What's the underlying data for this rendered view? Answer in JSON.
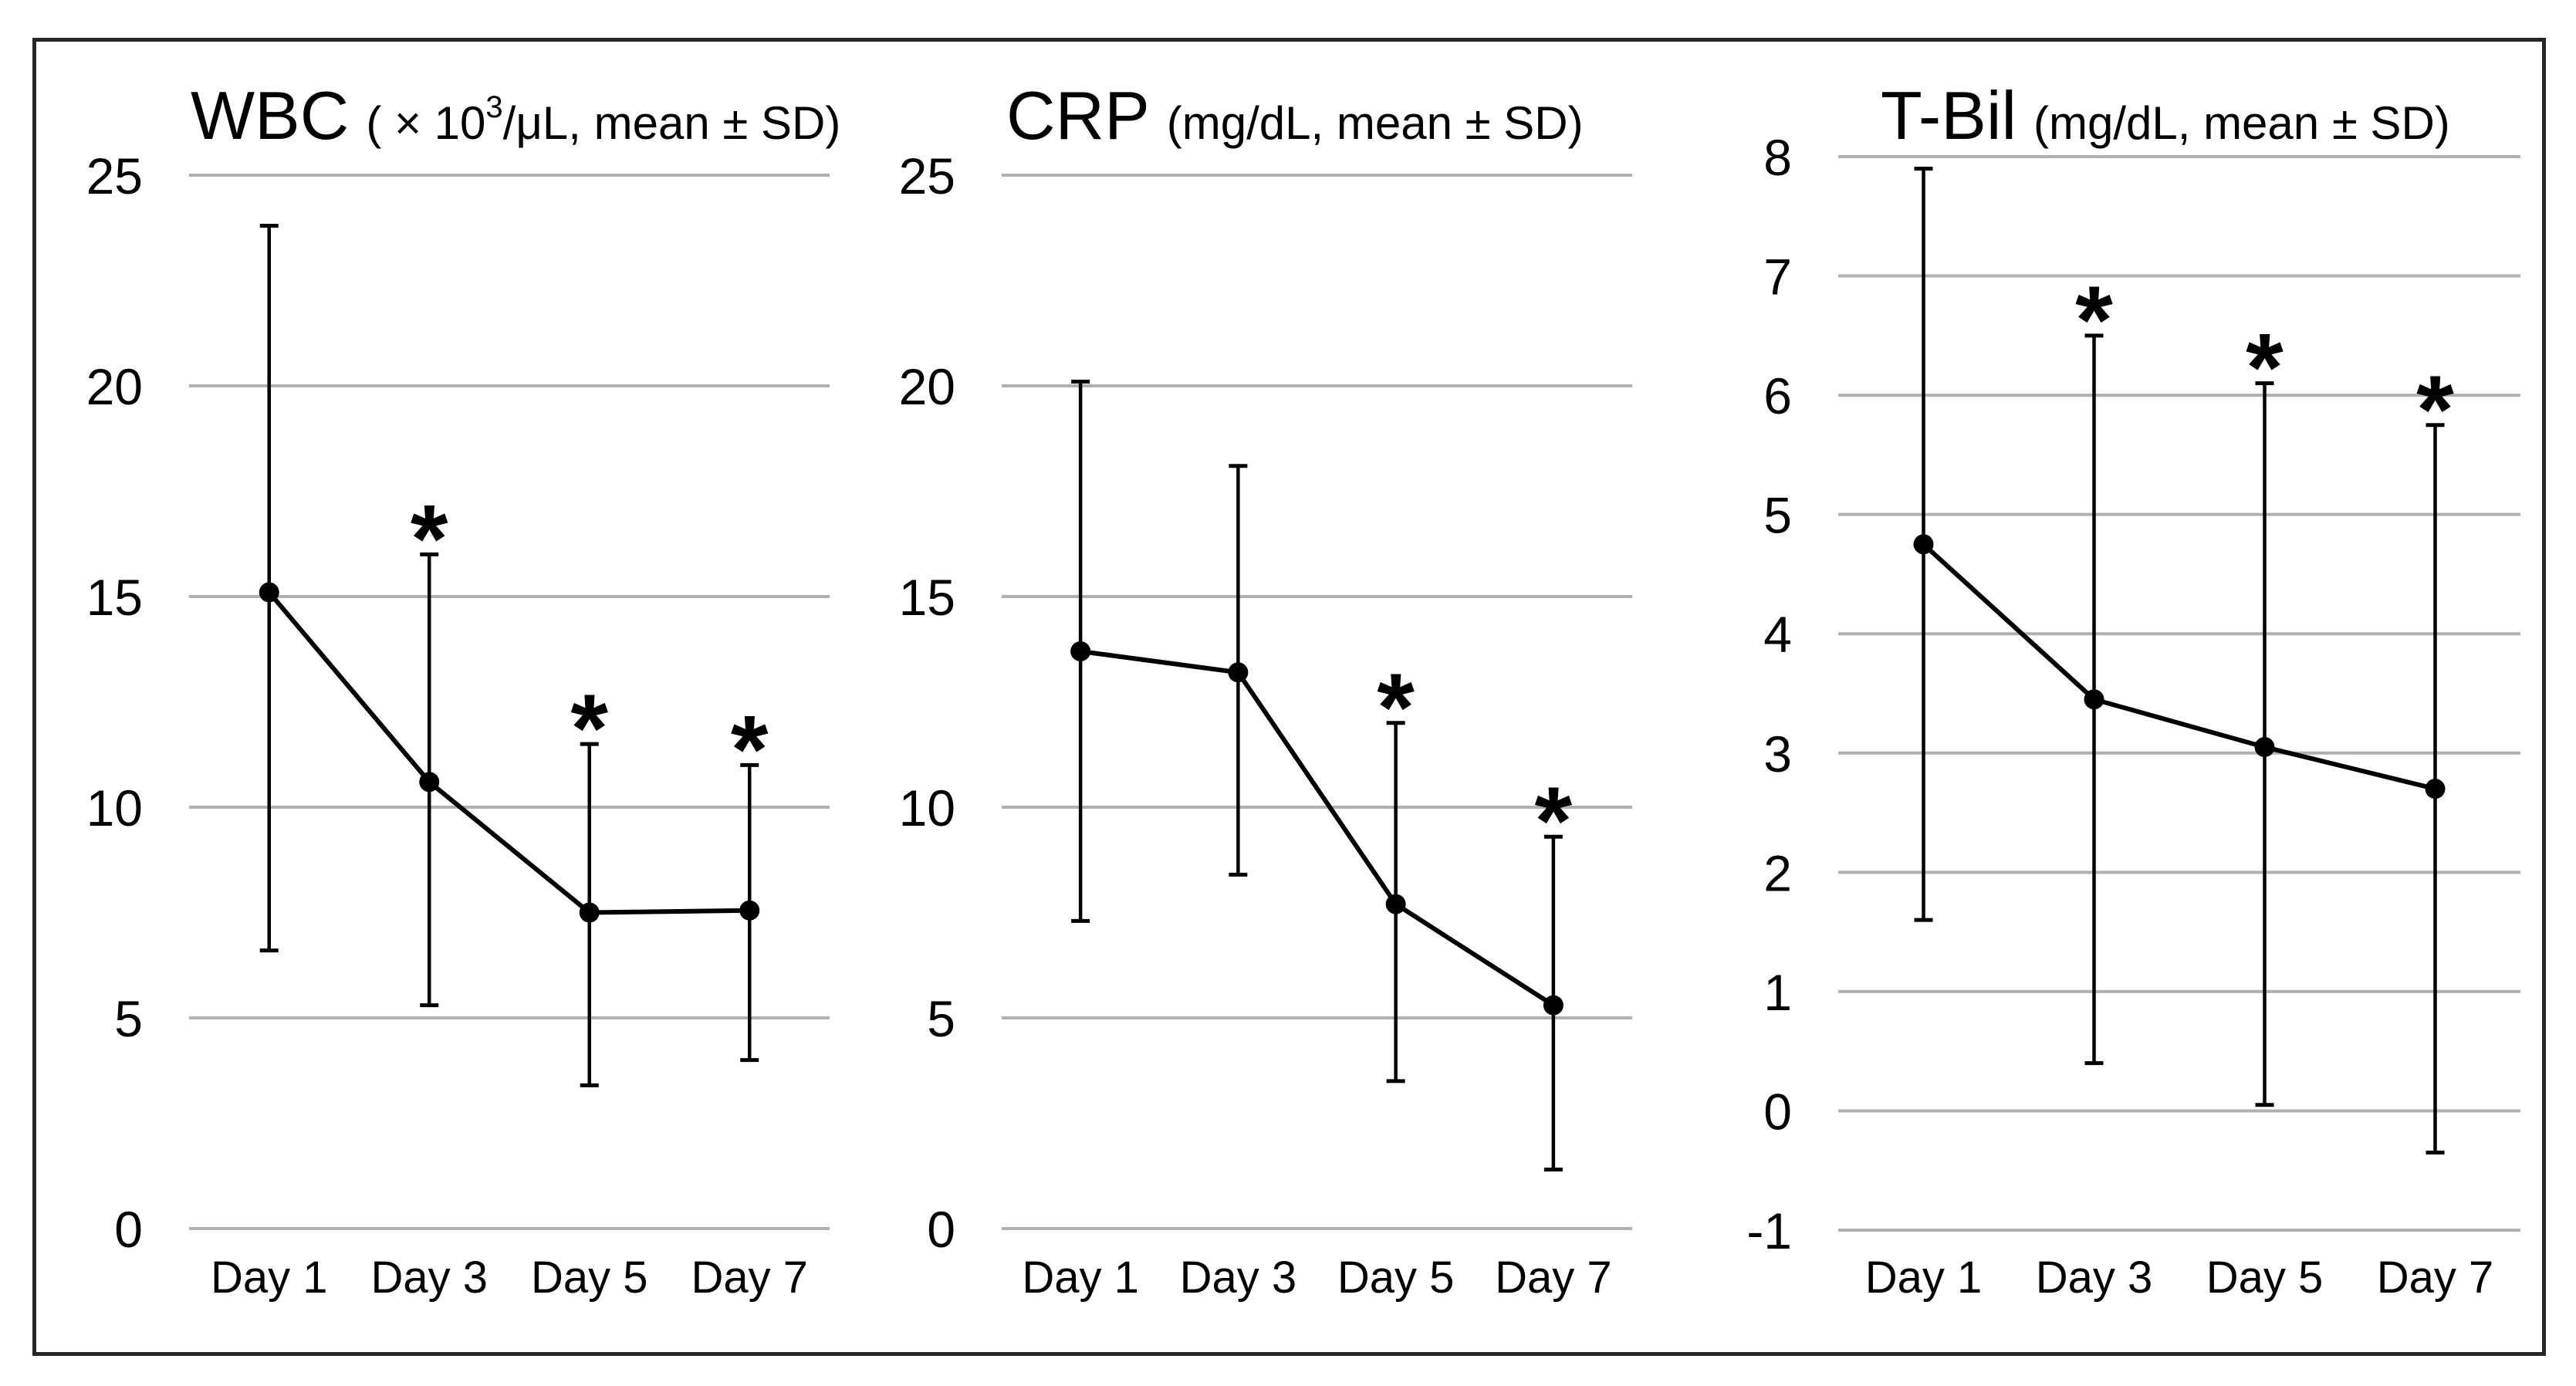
{
  "figure": {
    "background": "#ffffff",
    "border_color": "#262626",
    "gridline_color": "#b0b0b0",
    "series_color": "#000000",
    "text_color": "#000000",
    "significance_marker": "*"
  },
  "categories": [
    "Day 1",
    "Day 3",
    "Day 5",
    "Day 7"
  ],
  "chart_data": [
    {
      "type": "line",
      "title": "WBC",
      "unit_prefix": "( × 10",
      "unit_sup": "3",
      "unit_suffix": "/μL, mean ± SD)",
      "categories": [
        "Day 1",
        "Day 3",
        "Day 5",
        "Day 7"
      ],
      "series": [
        {
          "name": "mean",
          "values": [
            15.1,
            10.6,
            7.5,
            7.55
          ]
        },
        {
          "name": "sd_upper",
          "values": [
            23.8,
            16.0,
            11.5,
            11.0
          ]
        },
        {
          "name": "sd_lower",
          "values": [
            6.6,
            5.3,
            3.4,
            4.0
          ]
        }
      ],
      "significant": [
        false,
        true,
        true,
        true
      ],
      "ylim": [
        0,
        25
      ],
      "yticks": [
        25,
        20,
        15,
        10,
        5,
        0
      ],
      "grid": "horizontal",
      "legend": "none"
    },
    {
      "type": "line",
      "title": "CRP",
      "unit_prefix": "(mg/dL, mean ± SD)",
      "unit_sup": "",
      "unit_suffix": "",
      "categories": [
        "Day 1",
        "Day 3",
        "Day 5",
        "Day 7"
      ],
      "series": [
        {
          "name": "mean",
          "values": [
            13.7,
            13.2,
            7.7,
            5.3
          ]
        },
        {
          "name": "sd_upper",
          "values": [
            20.1,
            18.1,
            12.0,
            9.3
          ]
        },
        {
          "name": "sd_lower",
          "values": [
            7.3,
            8.4,
            3.5,
            1.4
          ]
        }
      ],
      "significant": [
        false,
        false,
        true,
        true
      ],
      "ylim": [
        0,
        25
      ],
      "yticks": [
        25,
        20,
        15,
        10,
        5,
        0
      ],
      "grid": "horizontal",
      "legend": "none"
    },
    {
      "type": "line",
      "title": "T-Bil",
      "unit_prefix": "(mg/dL, mean ± SD)",
      "unit_sup": "",
      "unit_suffix": "",
      "categories": [
        "Day 1",
        "Day 3",
        "Day 5",
        "Day 7"
      ],
      "series": [
        {
          "name": "mean",
          "values": [
            4.75,
            3.45,
            3.05,
            2.7
          ]
        },
        {
          "name": "sd_upper",
          "values": [
            7.9,
            6.5,
            6.1,
            5.75
          ]
        },
        {
          "name": "sd_lower",
          "values": [
            1.6,
            0.4,
            0.05,
            -0.35
          ]
        }
      ],
      "significant": [
        false,
        true,
        true,
        true
      ],
      "ylim": [
        -1,
        8
      ],
      "yticks": [
        8,
        7,
        6,
        5,
        4,
        3,
        2,
        1,
        0,
        -1
      ],
      "grid": "horizontal",
      "legend": "none"
    }
  ]
}
